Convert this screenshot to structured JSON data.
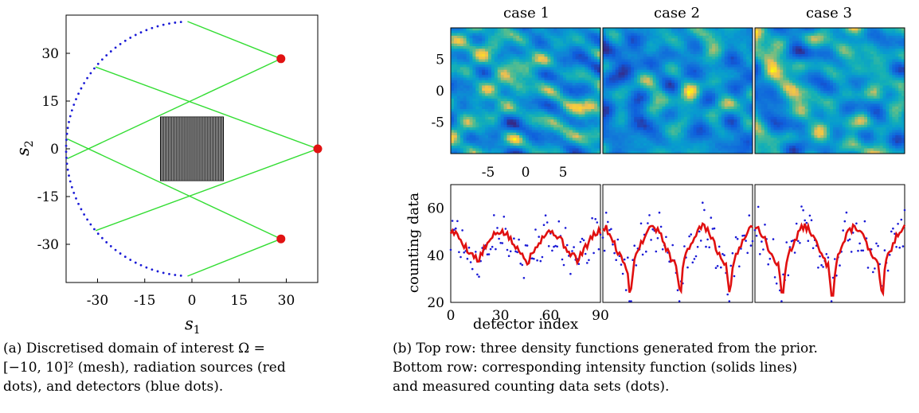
{
  "captions": {
    "a_line1": "(a) Discretised domain of interest Ω =",
    "a_line2": "[−10, 10]² (mesh), radiation sources (red",
    "a_line3": "dots), and detectors (blue dots).",
    "b_line1": "(b) Top row: three density functions generated from the prior.",
    "b_line2": "Bottom row: corresponding intensity function (solids lines)",
    "b_line3": "and measured counting data sets (dots)."
  },
  "colors": {
    "source": "#e11212",
    "detector": "#1a1ad6",
    "ray": "#33dd33",
    "mesh": "#000000",
    "intensity": "#e01010",
    "counts": "#1a1ad6"
  },
  "chart_data": [
    {
      "type": "scatter",
      "xlabel": "s1",
      "ylabel": "s2",
      "xlim": [
        -40,
        40
      ],
      "ylim": [
        -42,
        42
      ],
      "xticks": [
        "-30",
        "-15",
        "0",
        "15",
        "30"
      ],
      "yticks": [
        "30",
        "15",
        "0",
        "-15",
        "-30"
      ],
      "sources": [
        {
          "x": 28.3,
          "y": 28.3
        },
        {
          "x": 40,
          "y": 0
        },
        {
          "x": 28.3,
          "y": -28.3
        }
      ],
      "detectors": {
        "radius": 40,
        "theta_start_deg": 95,
        "theta_end_deg": 265,
        "count": 64
      },
      "rays": [
        {
          "from": [
            28.3,
            28.3
          ],
          "to": [
            -1.4,
            40
          ]
        },
        {
          "from": [
            28.3,
            28.3
          ],
          "to": [
            -39.6,
            -3.1
          ]
        },
        {
          "from": [
            40,
            0
          ],
          "to": [
            -30.6,
            25.7
          ]
        },
        {
          "from": [
            40,
            0
          ],
          "to": [
            -30.6,
            -25.7
          ]
        },
        {
          "from": [
            28.3,
            -28.3
          ],
          "to": [
            -1.4,
            -40
          ]
        },
        {
          "from": [
            28.3,
            -28.3
          ],
          "to": [
            -39.6,
            3.1
          ]
        }
      ],
      "mesh": {
        "xmin": -10,
        "xmax": 10,
        "ymin": -10,
        "ymax": 10,
        "n": 40
      }
    },
    {
      "type": "heatmap",
      "titles": [
        "case 1",
        "case 2",
        "case 3"
      ],
      "xlim": [
        -10,
        10
      ],
      "ylim": [
        -10,
        10
      ],
      "xticks": [
        "-5",
        "0",
        "5"
      ],
      "yticks": [
        "5",
        "0",
        "-5"
      ],
      "grid_size": 48,
      "seeds": [
        11,
        23,
        37
      ]
    },
    {
      "type": "line",
      "ylabel": "counting data",
      "xlabel": "detector index",
      "xlim": [
        0,
        90
      ],
      "ylim": [
        20,
        70
      ],
      "xticks": [
        "0",
        "30",
        "60",
        "90"
      ],
      "yticks": [
        "60",
        "40",
        "20"
      ],
      "series": [
        {
          "base": 45,
          "amp": 5,
          "depth": 3,
          "seed": 5
        },
        {
          "base": 44,
          "amp": 8,
          "depth": 12,
          "seed": 9
        },
        {
          "base": 44,
          "amp": 8,
          "depth": 14,
          "seed": 13
        }
      ]
    }
  ]
}
